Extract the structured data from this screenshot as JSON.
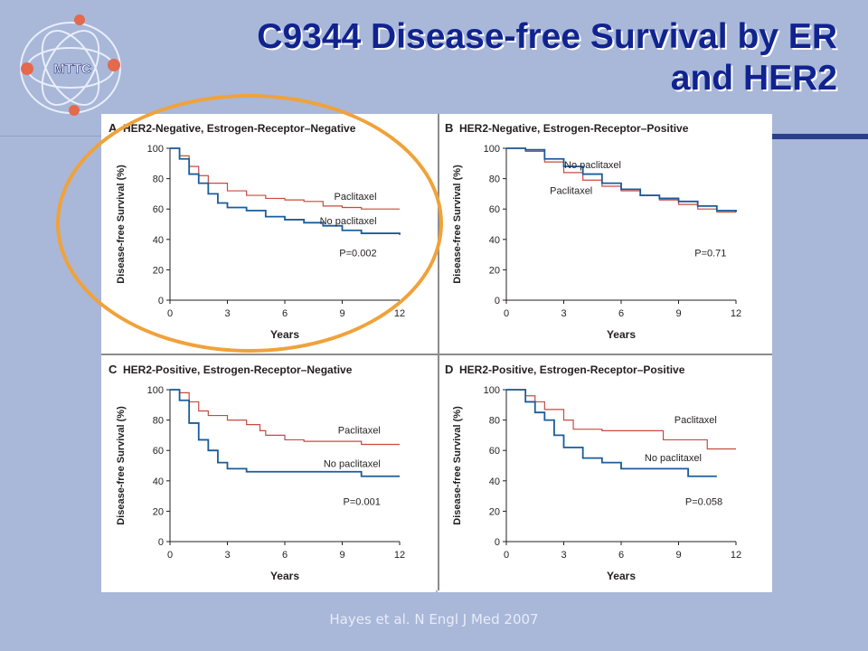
{
  "slide": {
    "title": "C9344 Disease-free Survival by ER and HER2",
    "citation": "Hayes et al. N Engl J Med 2007",
    "logo_text": "MTTC",
    "colors": {
      "paclitaxel": "#c94a3d",
      "no_paclitaxel": "#1a5c9c",
      "highlight": "#f0a23a",
      "title": "#10238f"
    }
  },
  "chart_data": [
    {
      "type": "line",
      "panel": "A",
      "title": "HER2-Negative, Estrogen-Receptor–Negative",
      "xlabel": "Years",
      "ylabel": "Disease-free Survival (%)",
      "xlim": [
        0,
        12
      ],
      "ylim": [
        0,
        100
      ],
      "xticks": [
        "0",
        "3",
        "6",
        "9",
        "12"
      ],
      "yticks": [
        "0",
        "20",
        "40",
        "60",
        "80",
        "100"
      ],
      "p_value": "P=0.002",
      "series": [
        {
          "name": "Paclitaxel",
          "values": [
            [
              0,
              100
            ],
            [
              0.5,
              95
            ],
            [
              1,
              88
            ],
            [
              1.5,
              82
            ],
            [
              2,
              77
            ],
            [
              3,
              72
            ],
            [
              4,
              69
            ],
            [
              5,
              67
            ],
            [
              6,
              66
            ],
            [
              7,
              65
            ],
            [
              8,
              62
            ],
            [
              9,
              61
            ],
            [
              10,
              60
            ],
            [
              12,
              60
            ]
          ]
        },
        {
          "name": "No paclitaxel",
          "values": [
            [
              0,
              100
            ],
            [
              0.5,
              93
            ],
            [
              1,
              83
            ],
            [
              1.5,
              77
            ],
            [
              2,
              70
            ],
            [
              2.5,
              64
            ],
            [
              3,
              61
            ],
            [
              4,
              59
            ],
            [
              5,
              55
            ],
            [
              6,
              53
            ],
            [
              7,
              51
            ],
            [
              8,
              49
            ],
            [
              9,
              46
            ],
            [
              10,
              44
            ],
            [
              12,
              43
            ]
          ]
        }
      ]
    },
    {
      "type": "line",
      "panel": "B",
      "title": "HER2-Negative, Estrogen-Receptor–Positive",
      "xlabel": "Years",
      "ylabel": "Disease-free Survival (%)",
      "xlim": [
        0,
        12
      ],
      "ylim": [
        0,
        100
      ],
      "xticks": [
        "0",
        "3",
        "6",
        "9",
        "12"
      ],
      "yticks": [
        "0",
        "20",
        "40",
        "60",
        "80",
        "100"
      ],
      "p_value": "P=0.71",
      "series": [
        {
          "name": "Paclitaxel",
          "values": [
            [
              0,
              100
            ],
            [
              1,
              98
            ],
            [
              2,
              91
            ],
            [
              3,
              84
            ],
            [
              4,
              79
            ],
            [
              5,
              75
            ],
            [
              6,
              72
            ],
            [
              7,
              69
            ],
            [
              8,
              66
            ],
            [
              9,
              63
            ],
            [
              10,
              60
            ],
            [
              11,
              58
            ],
            [
              12,
              58
            ]
          ]
        },
        {
          "name": "No paclitaxel",
          "values": [
            [
              0,
              100
            ],
            [
              1,
              99
            ],
            [
              2,
              93
            ],
            [
              3,
              88
            ],
            [
              4,
              83
            ],
            [
              5,
              77
            ],
            [
              6,
              73
            ],
            [
              7,
              69
            ],
            [
              8,
              67
            ],
            [
              9,
              65
            ],
            [
              10,
              62
            ],
            [
              11,
              59
            ],
            [
              12,
              58
            ]
          ]
        }
      ]
    },
    {
      "type": "line",
      "panel": "C",
      "title": "HER2-Positive, Estrogen-Receptor–Negative",
      "xlabel": "Years",
      "ylabel": "Disease-free Survival (%)",
      "xlim": [
        0,
        12
      ],
      "ylim": [
        0,
        100
      ],
      "xticks": [
        "0",
        "3",
        "6",
        "9",
        "12"
      ],
      "yticks": [
        "0",
        "20",
        "40",
        "60",
        "80",
        "100"
      ],
      "p_value": "P=0.001",
      "series": [
        {
          "name": "Paclitaxel",
          "values": [
            [
              0,
              100
            ],
            [
              0.5,
              98
            ],
            [
              1,
              92
            ],
            [
              1.5,
              86
            ],
            [
              2,
              83
            ],
            [
              3,
              80
            ],
            [
              4,
              77
            ],
            [
              4.7,
              73
            ],
            [
              5,
              70
            ],
            [
              6,
              67
            ],
            [
              7,
              66
            ],
            [
              9,
              66
            ],
            [
              10,
              64
            ],
            [
              12,
              64
            ]
          ]
        },
        {
          "name": "No paclitaxel",
          "values": [
            [
              0,
              100
            ],
            [
              0.5,
              93
            ],
            [
              1,
              78
            ],
            [
              1.5,
              67
            ],
            [
              2,
              60
            ],
            [
              2.5,
              52
            ],
            [
              3,
              48
            ],
            [
              4,
              46
            ],
            [
              6,
              46
            ],
            [
              8,
              46
            ],
            [
              10,
              43
            ],
            [
              12,
              43
            ]
          ]
        }
      ]
    },
    {
      "type": "line",
      "panel": "D",
      "title": "HER2-Positive, Estrogen-Receptor–Positive",
      "xlabel": "Years",
      "ylabel": "Disease-free Survival (%)",
      "xlim": [
        0,
        12
      ],
      "ylim": [
        0,
        100
      ],
      "xticks": [
        "0",
        "3",
        "6",
        "9",
        "12"
      ],
      "yticks": [
        "0",
        "20",
        "40",
        "60",
        "80",
        "100"
      ],
      "p_value": "P=0.058",
      "series": [
        {
          "name": "Paclitaxel",
          "values": [
            [
              0,
              100
            ],
            [
              1,
              96
            ],
            [
              1.5,
              92
            ],
            [
              2,
              87
            ],
            [
              3,
              80
            ],
            [
              3.5,
              74
            ],
            [
              5,
              73
            ],
            [
              8,
              73
            ],
            [
              8.2,
              67
            ],
            [
              10,
              67
            ],
            [
              10.5,
              61
            ],
            [
              12,
              61
            ]
          ]
        },
        {
          "name": "No paclitaxel",
          "values": [
            [
              0,
              100
            ],
            [
              1,
              92
            ],
            [
              1.5,
              85
            ],
            [
              2,
              80
            ],
            [
              2.5,
              70
            ],
            [
              3,
              62
            ],
            [
              4,
              55
            ],
            [
              5,
              52
            ],
            [
              6,
              48
            ],
            [
              7,
              48
            ],
            [
              9,
              48
            ],
            [
              9.5,
              43
            ],
            [
              11,
              43
            ]
          ]
        }
      ]
    }
  ]
}
